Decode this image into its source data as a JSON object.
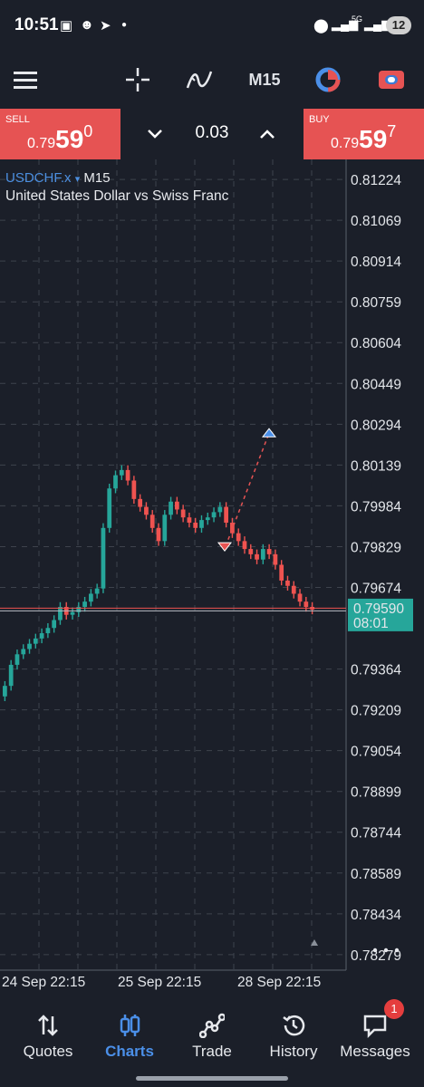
{
  "status_bar": {
    "time": "10:51",
    "battery": "12",
    "net": "5G"
  },
  "toolbar": {
    "timeframe": "M15",
    "icons": [
      "menu-icon",
      "crosshair-icon",
      "indicators-icon",
      "timeframe",
      "one-click-icon",
      "trade-toggle-icon"
    ]
  },
  "trade_bar": {
    "sell_label": "SELL",
    "sell_price_prefix": "0.79",
    "sell_price_big": "59",
    "sell_price_sup": "0",
    "buy_label": "BUY",
    "buy_price_prefix": "0.79",
    "buy_price_big": "59",
    "buy_price_sup": "7",
    "lot": "0.03",
    "colors": {
      "sell": "#e65353",
      "buy": "#e65353"
    }
  },
  "chart": {
    "symbol": "USDCHF.x",
    "symbol_arrow": "▾",
    "timeframe": "M15",
    "description": "United States Dollar vs Swiss Franc",
    "current_price": "0.79590",
    "countdown": "08:01",
    "colors": {
      "bull": "#26a69a",
      "bear": "#ef5350",
      "price_tag": "#26a69a"
    }
  },
  "chart_data": {
    "type": "candlestick",
    "y_ticks": [
      "0.81224",
      "0.81069",
      "0.80914",
      "0.80759",
      "0.80604",
      "0.80449",
      "0.80294",
      "0.80139",
      "0.79984",
      "0.79829",
      "0.79674",
      "0.79364",
      "0.79209",
      "0.79054",
      "0.78899",
      "0.78744",
      "0.78589",
      "0.78434",
      "0.78279"
    ],
    "x_ticks": [
      "24 Sep 22:15",
      "25 Sep 22:15",
      "28 Sep 22:15"
    ],
    "ylim": [
      0.7822,
      0.813
    ],
    "grid": true,
    "price_line": 0.7959,
    "closes": [
      0.793,
      0.7938,
      0.7942,
      0.7944,
      0.7946,
      0.7948,
      0.795,
      0.7952,
      0.7955,
      0.796,
      0.7957,
      0.7958,
      0.796,
      0.7962,
      0.7965,
      0.7967,
      0.799,
      0.8005,
      0.801,
      0.8012,
      0.8008,
      0.8001,
      0.7998,
      0.7995,
      0.799,
      0.7985,
      0.7995,
      0.8,
      0.7997,
      0.7994,
      0.7992,
      0.799,
      0.7993,
      0.7994,
      0.7996,
      0.7998,
      0.7992,
      0.7988,
      0.7985,
      0.7982,
      0.798,
      0.7978,
      0.7982,
      0.798,
      0.7976,
      0.797,
      0.7968,
      0.7965,
      0.7962,
      0.796,
      0.7959
    ],
    "trade_markers": [
      {
        "type": "sell",
        "price": 0.7983
      },
      {
        "type": "buy",
        "price": 0.8026
      }
    ]
  },
  "bottom_nav": {
    "items": [
      {
        "label": "Quotes",
        "icon": "quotes-icon",
        "active": false
      },
      {
        "label": "Charts",
        "icon": "charts-icon",
        "active": true
      },
      {
        "label": "Trade",
        "icon": "trade-icon",
        "active": false
      },
      {
        "label": "History",
        "icon": "history-icon",
        "active": false
      },
      {
        "label": "Messages",
        "icon": "messages-icon",
        "active": false
      }
    ],
    "messages_badge": "1"
  }
}
